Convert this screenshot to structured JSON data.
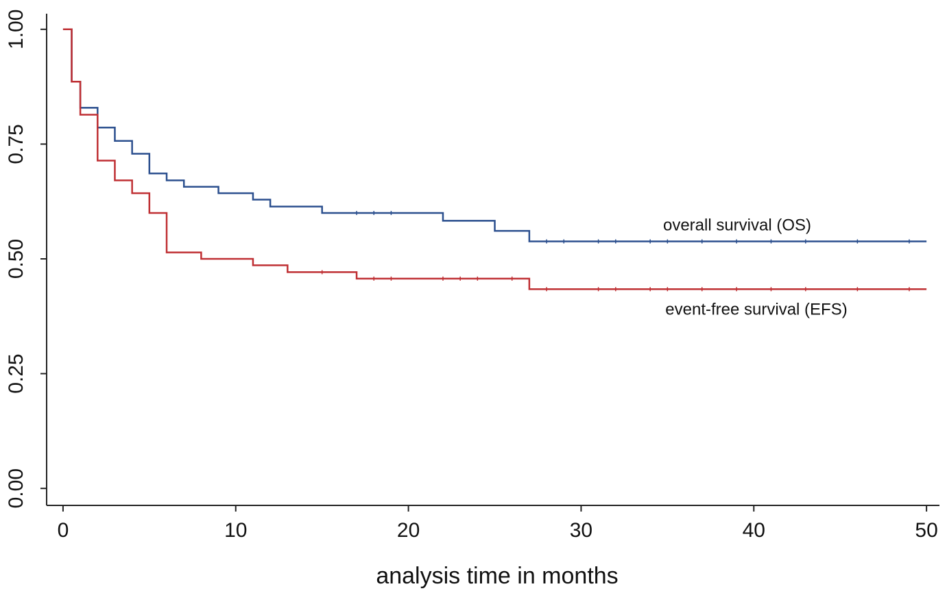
{
  "chart_data": {
    "type": "step",
    "x_label": "analysis time in months",
    "xlim": [
      -0.95,
      50.75
    ],
    "ylim": [
      -0.037,
      1.034
    ],
    "xticks": [
      0,
      10,
      20,
      30,
      40,
      50
    ],
    "yticks": [
      {
        "value": 0,
        "label": "0.00"
      },
      0.25,
      {
        "value": 0.5,
        "label": "0.50"
      },
      0.75,
      {
        "value": 1,
        "label": "1.00"
      }
    ],
    "series": [
      {
        "name": "overall survival (OS)",
        "color": "#2b4f8e",
        "x": [
          0,
          0.5,
          1,
          2,
          3,
          4,
          5,
          6,
          7,
          9,
          11,
          12,
          15,
          22,
          25,
          27,
          50
        ],
        "values": [
          1.0,
          0.886,
          0.829,
          0.786,
          0.757,
          0.729,
          0.686,
          0.671,
          0.657,
          0.643,
          0.629,
          0.614,
          0.6,
          0.583,
          0.561,
          0.538,
          0.538
        ],
        "censored": [
          17,
          18,
          19,
          28,
          29,
          31,
          32,
          34,
          35,
          37,
          39,
          41,
          43,
          46,
          49
        ]
      },
      {
        "name": "event-free survival (EFS)",
        "color": "#bf2f33",
        "x": [
          0,
          0.5,
          1,
          2,
          3,
          4,
          5,
          6,
          8,
          11,
          13,
          17,
          27,
          50
        ],
        "values": [
          1.0,
          0.886,
          0.814,
          0.714,
          0.671,
          0.643,
          0.6,
          0.514,
          0.5,
          0.486,
          0.471,
          0.457,
          0.434,
          0.434
        ],
        "censored": [
          15,
          18,
          19,
          22,
          23,
          24,
          26,
          28,
          31,
          32,
          34,
          35,
          37,
          39,
          41,
          43,
          46,
          49
        ]
      }
    ]
  }
}
